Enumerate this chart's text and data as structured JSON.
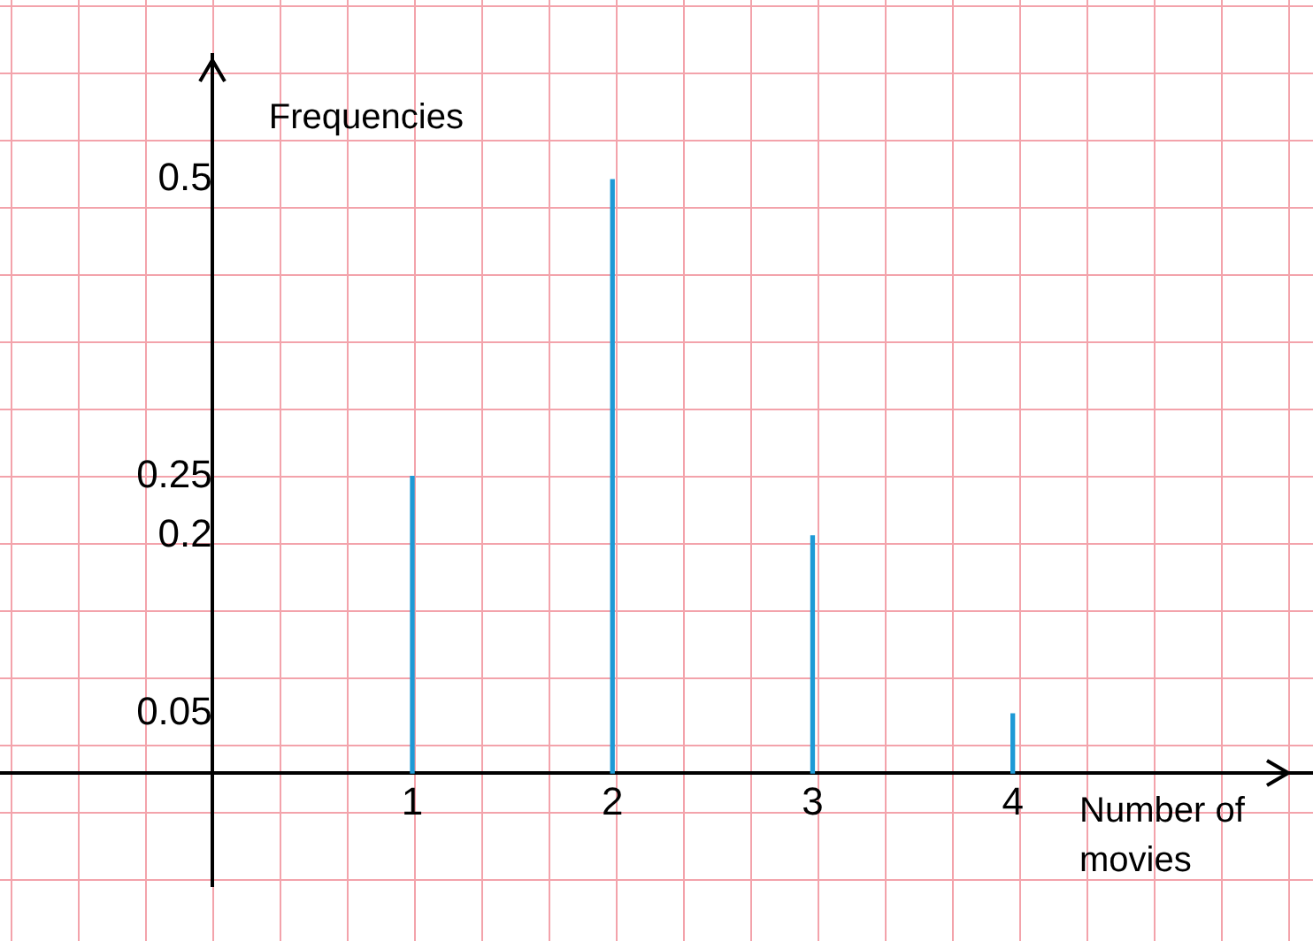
{
  "chart_data": {
    "type": "bar",
    "xlabel": "Number of movies",
    "ylabel": "Frequencies",
    "x": [
      1,
      2,
      3,
      4
    ],
    "series": [
      {
        "color": "#1e9ad6",
        "values": [
          0.25,
          0.5,
          0.2,
          0.05
        ]
      }
    ],
    "xlim": [
      -1.06,
      5.5
    ],
    "xticks": [
      1,
      2,
      3,
      4
    ],
    "ylim": [
      -0.095,
      0.605
    ],
    "yticks": [
      0.05,
      0.2,
      0.25,
      0.5
    ]
  }
}
